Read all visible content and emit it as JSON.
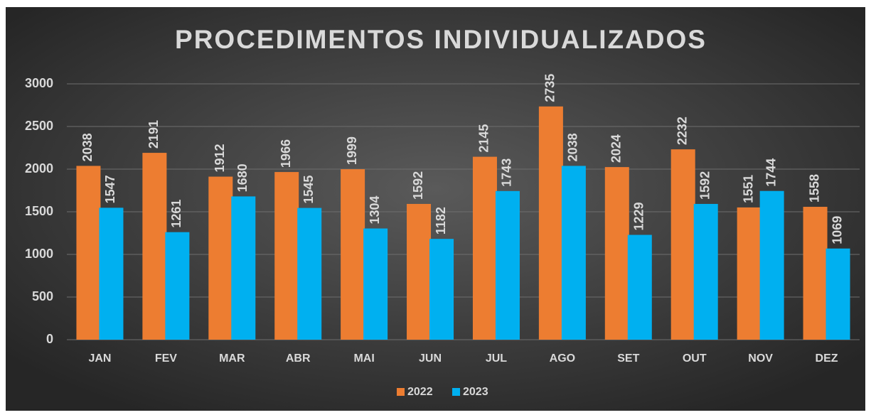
{
  "chart_data": {
    "type": "bar",
    "title": "PROCEDIMENTOS INDIVIDUALIZADOS",
    "categories": [
      "JAN",
      "FEV",
      "MAR",
      "ABR",
      "MAI",
      "JUN",
      "JUL",
      "AGO",
      "SET",
      "OUT",
      "NOV",
      "DEZ"
    ],
    "series": [
      {
        "name": "2022",
        "color": "#ed7d31",
        "values": [
          2038,
          2191,
          1912,
          1966,
          1999,
          1592,
          2145,
          2735,
          2024,
          2232,
          1551,
          1558
        ]
      },
      {
        "name": "2023",
        "color": "#00b0f0",
        "values": [
          1547,
          1261,
          1680,
          1545,
          1304,
          1182,
          1743,
          2038,
          1229,
          1592,
          1744,
          1069
        ]
      }
    ],
    "ylim": [
      0,
      3000
    ],
    "yticks": [
      0,
      500,
      1000,
      1500,
      2000,
      2500,
      3000
    ],
    "grid": true,
    "legend": "bottom"
  }
}
